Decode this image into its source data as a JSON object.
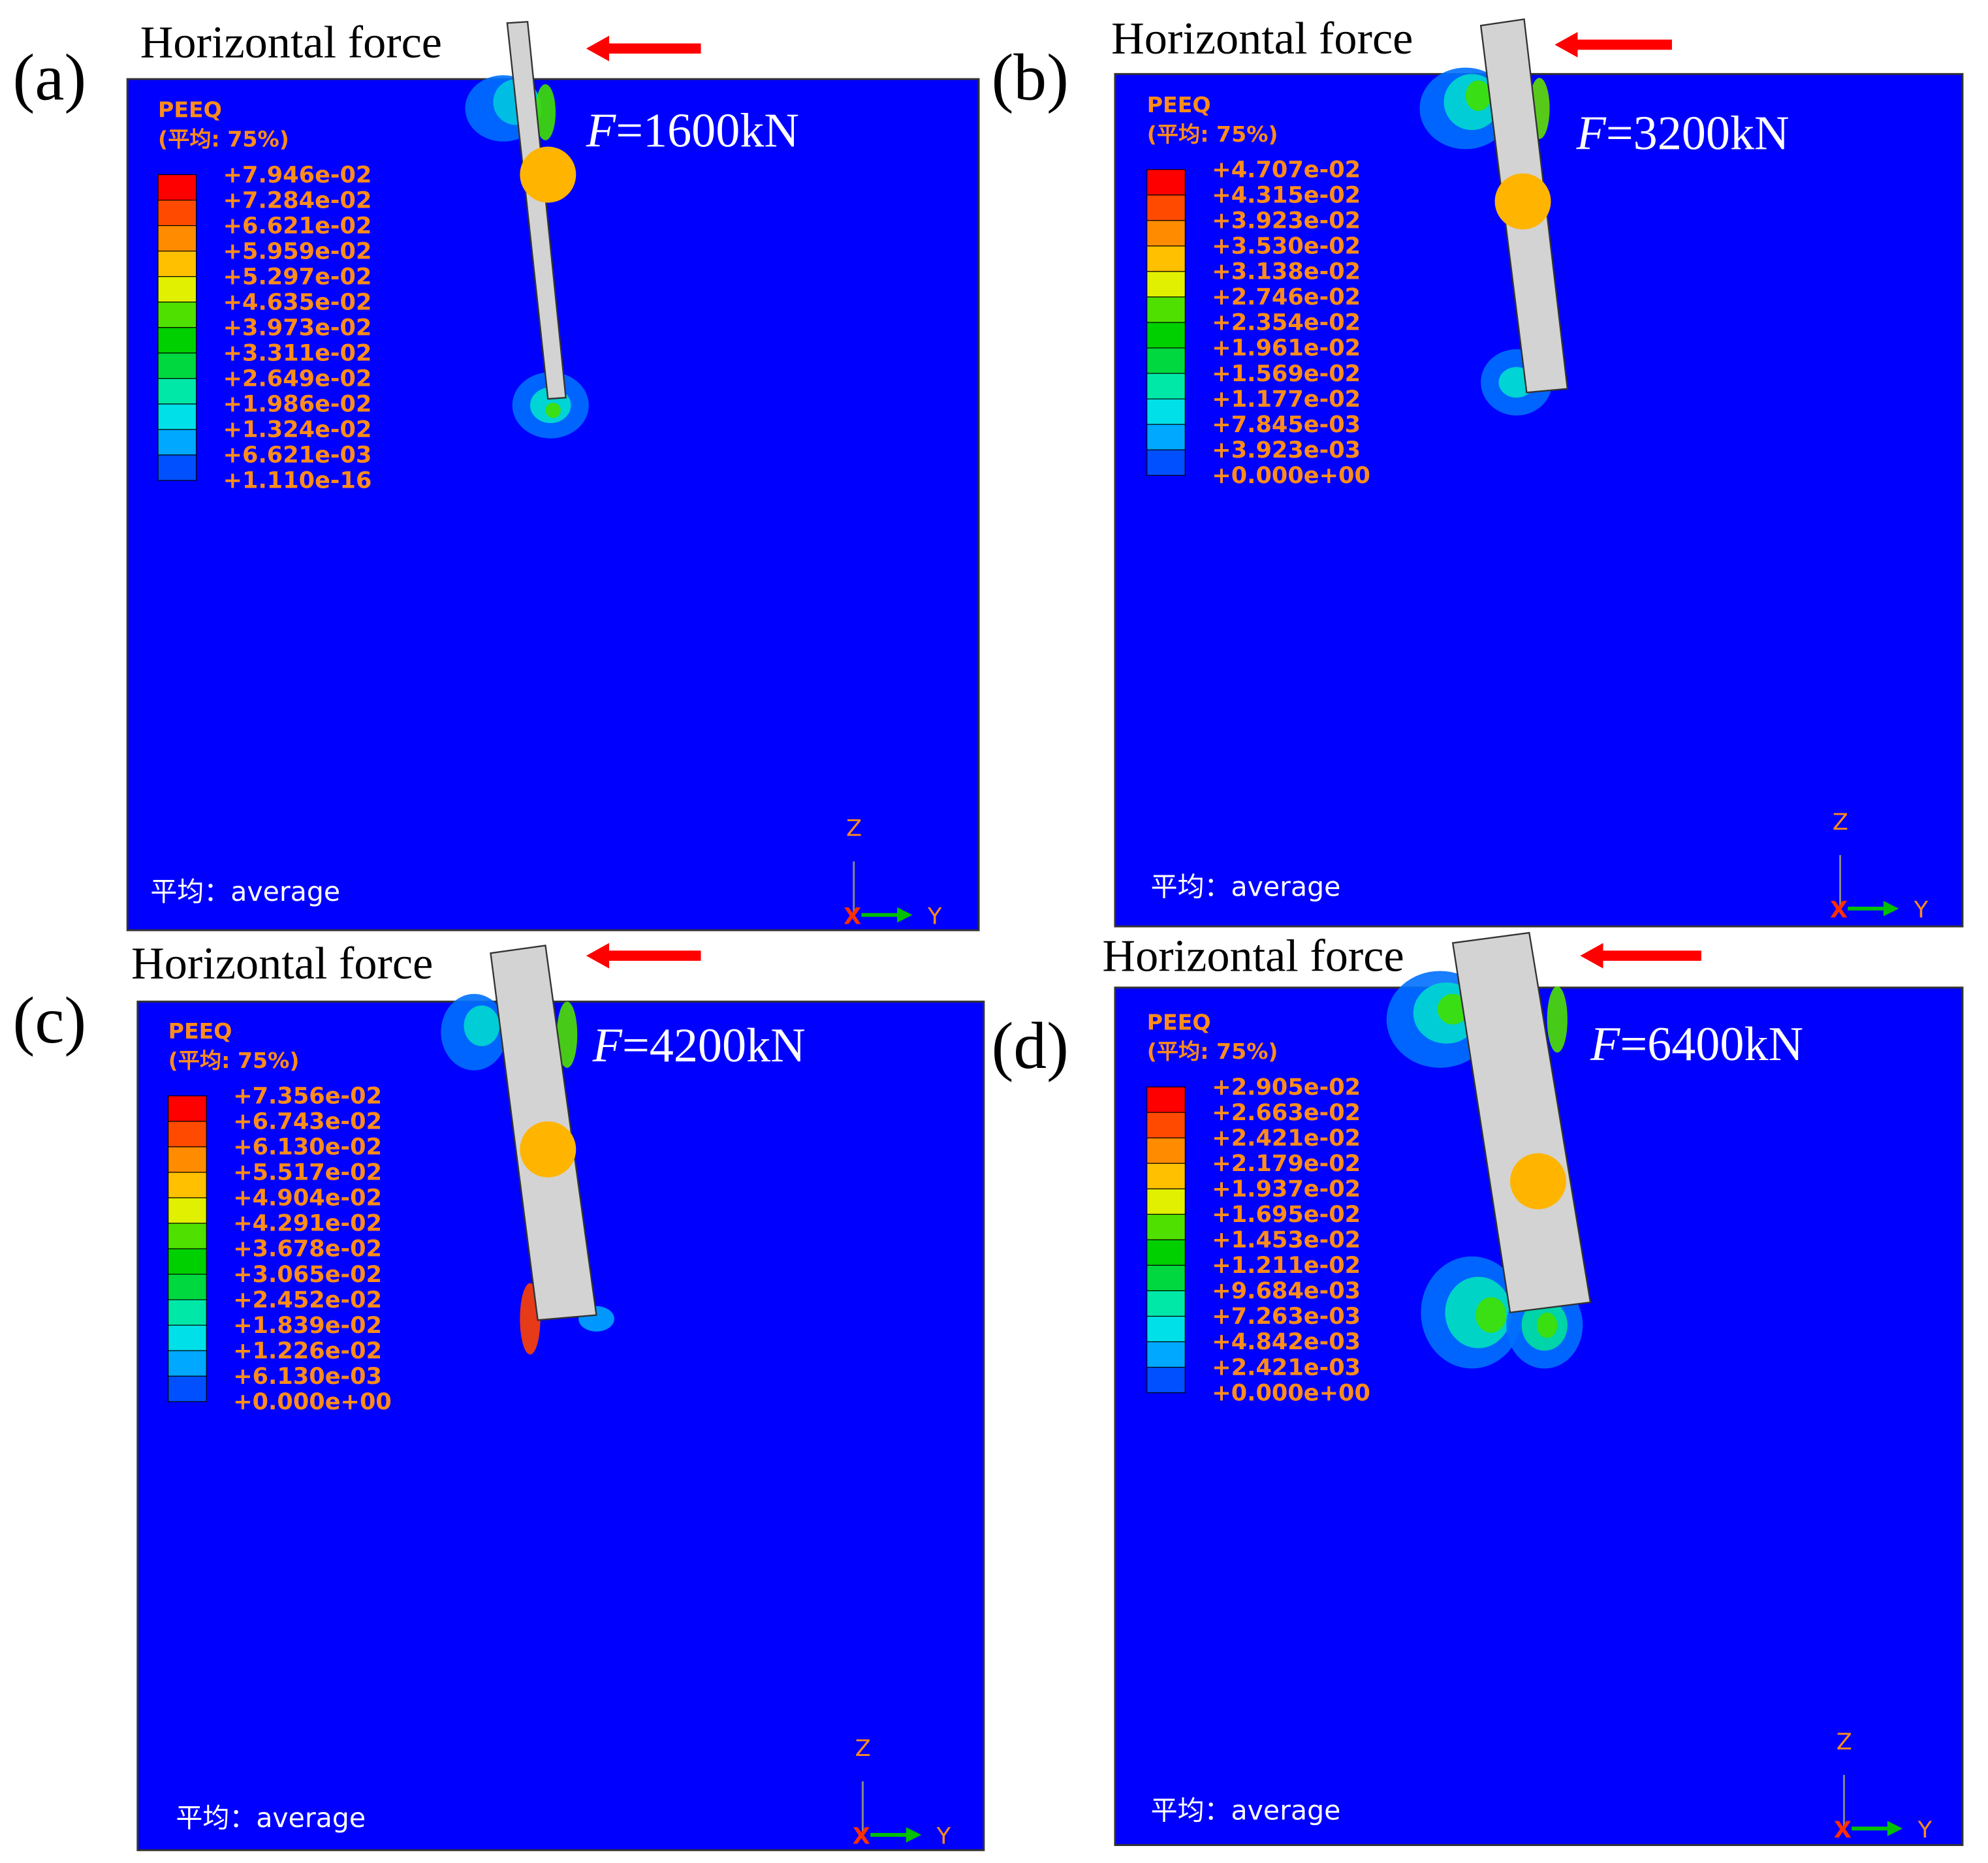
{
  "panels": [
    {
      "label": "(a)",
      "force_label": "Horizontal force",
      "load_symbol": "F",
      "load_value": "=1600kN",
      "legend_title": "PEEQ",
      "legend_subtitle": "(平均: 75%)",
      "legend_values": [
        "+7.946e-02",
        "+7.284e-02",
        "+6.621e-02",
        "+5.959e-02",
        "+5.297e-02",
        "+4.635e-02",
        "+3.973e-02",
        "+3.311e-02",
        "+2.649e-02",
        "+1.986e-02",
        "+1.324e-02",
        "+6.621e-03",
        "+1.110e-16"
      ],
      "footer": "平均：average",
      "axis_z": "Z",
      "axis_y": "Y",
      "axis_x": "X"
    },
    {
      "label": "(b)",
      "force_label": "Horizontal force",
      "load_symbol": "F",
      "load_value": "=3200kN",
      "legend_title": "PEEQ",
      "legend_subtitle": "(平均: 75%)",
      "legend_values": [
        "+4.707e-02",
        "+4.315e-02",
        "+3.923e-02",
        "+3.530e-02",
        "+3.138e-02",
        "+2.746e-02",
        "+2.354e-02",
        "+1.961e-02",
        "+1.569e-02",
        "+1.177e-02",
        "+7.845e-03",
        "+3.923e-03",
        "+0.000e+00"
      ],
      "footer": "平均：average",
      "axis_z": "Z",
      "axis_y": "Y",
      "axis_x": "X"
    },
    {
      "label": "(c)",
      "force_label": "Horizontal force",
      "load_symbol": "F",
      "load_value": "=4200kN",
      "legend_title": "PEEQ",
      "legend_subtitle": "(平均: 75%)",
      "legend_values": [
        "+7.356e-02",
        "+6.743e-02",
        "+6.130e-02",
        "+5.517e-02",
        "+4.904e-02",
        "+4.291e-02",
        "+3.678e-02",
        "+3.065e-02",
        "+2.452e-02",
        "+1.839e-02",
        "+1.226e-02",
        "+6.130e-03",
        "+0.000e+00"
      ],
      "footer": "平均：average",
      "axis_z": "Z",
      "axis_y": "Y",
      "axis_x": "X"
    },
    {
      "label": "(d)",
      "force_label": "Horizontal force",
      "load_symbol": "F",
      "load_value": "=6400kN",
      "legend_title": "PEEQ",
      "legend_subtitle": "(平均: 75%)",
      "legend_values": [
        "+2.905e-02",
        "+2.663e-02",
        "+2.421e-02",
        "+2.179e-02",
        "+1.937e-02",
        "+1.695e-02",
        "+1.453e-02",
        "+1.211e-02",
        "+9.684e-03",
        "+7.263e-03",
        "+4.842e-03",
        "+2.421e-03",
        "+0.000e+00"
      ],
      "footer": "平均：average",
      "axis_z": "Z",
      "axis_y": "Y",
      "axis_x": "X"
    }
  ]
}
